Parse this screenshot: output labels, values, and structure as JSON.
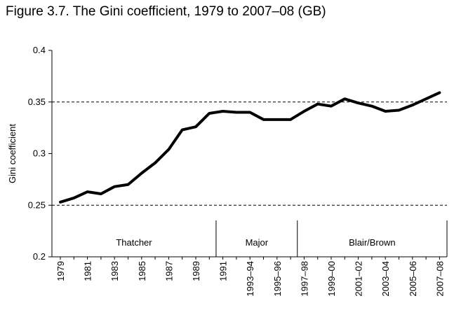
{
  "page": {
    "title": "Figure 3.7. The Gini coefficient, 1979 to 2007–08 (GB)"
  },
  "chart_data": {
    "type": "line",
    "title": "Figure 3.7. The Gini coefficient, 1979 to 2007–08 (GB)",
    "xlabel": "",
    "ylabel": "Gini coefficient",
    "ylim": [
      0.2,
      0.4
    ],
    "yticks": [
      "0.2",
      "0.25",
      "0.3",
      "0.35",
      "0.4"
    ],
    "reference_lines": [
      0.25,
      0.35
    ],
    "grid": false,
    "x": [
      "1979",
      "1980",
      "1981",
      "1982",
      "1983",
      "1984",
      "1985",
      "1986",
      "1987",
      "1988",
      "1989",
      "1990",
      "1991",
      "1992",
      "1993–94",
      "1994–95",
      "1995–96",
      "1996–97",
      "1997–98",
      "1998–99",
      "1999–00",
      "2000–01",
      "2001–02",
      "2002–03",
      "2003–04",
      "2004–05",
      "2005–06",
      "2006–07",
      "2007–08"
    ],
    "x_tick_labels": [
      "1979",
      "1981",
      "1983",
      "1985",
      "1987",
      "1989",
      "1991",
      "1993–94",
      "1995–96",
      "1997–98",
      "1999–00",
      "2001–02",
      "2003–04",
      "2005–06",
      "2007–08"
    ],
    "series": [
      {
        "values": [
          0.253,
          0.257,
          0.263,
          0.261,
          0.268,
          0.27,
          0.281,
          0.291,
          0.304,
          0.323,
          0.326,
          0.339,
          0.341,
          0.34,
          0.34,
          0.333,
          0.333,
          0.333,
          0.341,
          0.348,
          0.346,
          0.353,
          0.349,
          0.346,
          0.341,
          0.342,
          0.347,
          0.353,
          0.359
        ]
      }
    ],
    "periods": [
      {
        "label": "Thatcher",
        "from": "1979",
        "to": "1990"
      },
      {
        "label": "Major",
        "from": "1991",
        "to": "1996–97"
      },
      {
        "label": "Blair/Brown",
        "from": "1997–98",
        "to": "2007–08"
      }
    ]
  }
}
